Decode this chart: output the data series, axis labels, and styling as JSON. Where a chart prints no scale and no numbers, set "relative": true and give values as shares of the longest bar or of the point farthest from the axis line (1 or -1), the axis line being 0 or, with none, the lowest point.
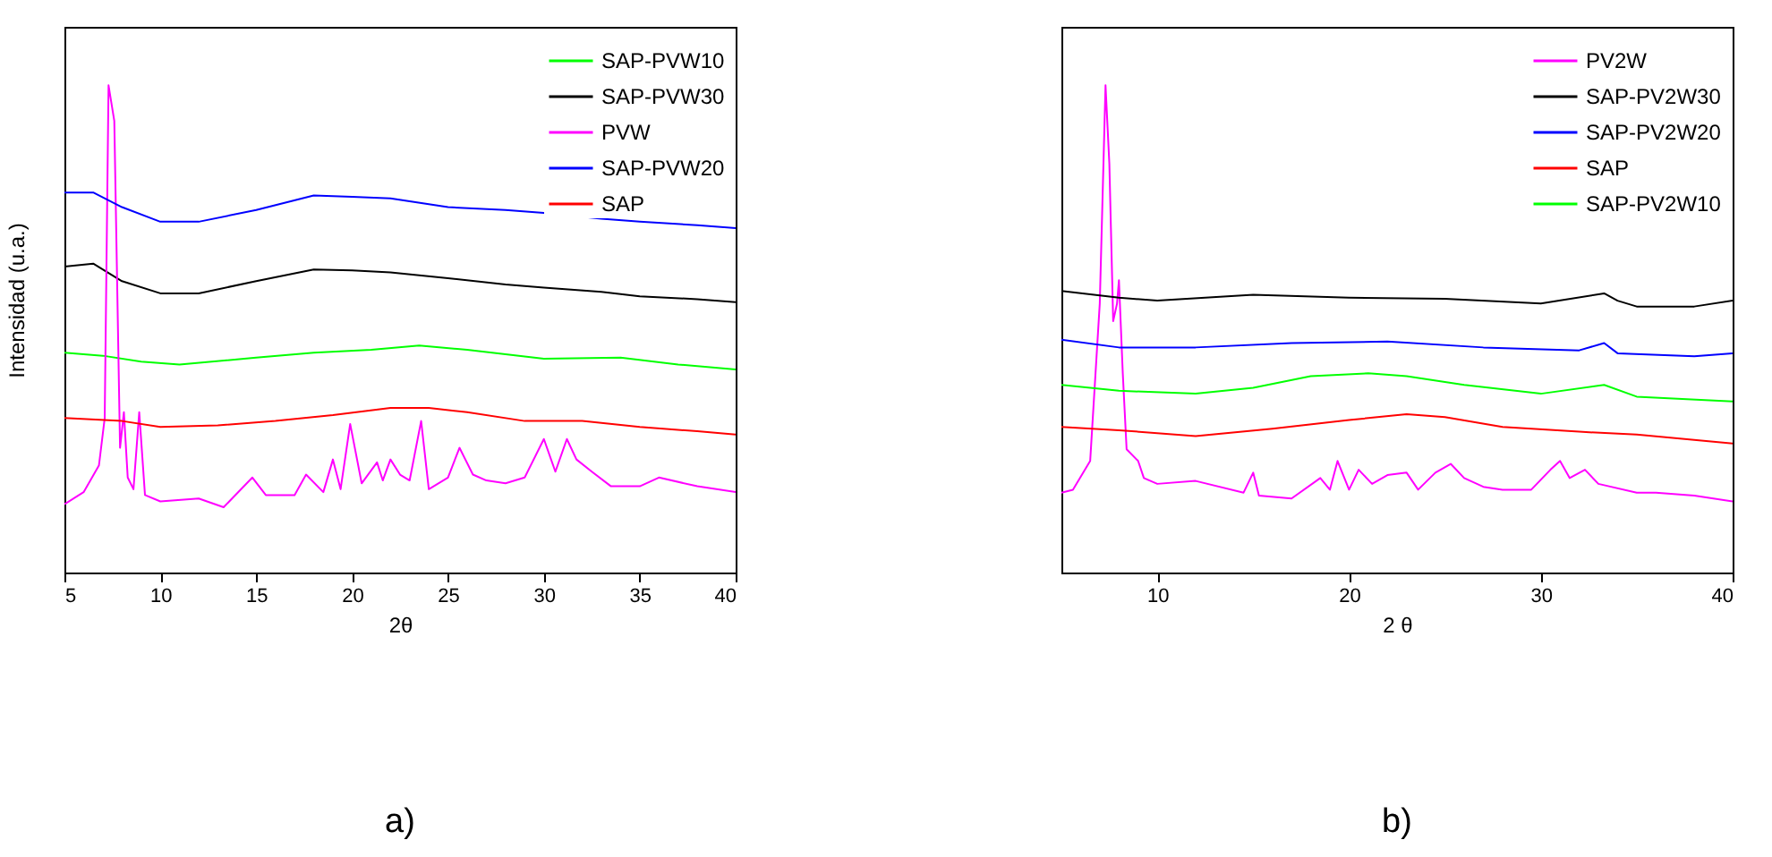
{
  "chart_data": [
    {
      "type": "line",
      "relative": true,
      "xlabel": "2θ",
      "ylabel": "Intensidad (u.a.)",
      "xlim": [
        5,
        40
      ],
      "xticks": [
        5,
        10,
        15,
        20,
        25,
        30,
        35,
        40
      ],
      "legend": "top right",
      "annotations": [
        "a)"
      ],
      "series": [
        {
          "name": "SAP-PVW10",
          "color": "#00ff00",
          "x": [
            5,
            7,
            9,
            11,
            15,
            18,
            21,
            23.5,
            26,
            30,
            34,
            37,
            40
          ],
          "values": [
            0.451,
            0.445,
            0.433,
            0.427,
            0.441,
            0.451,
            0.457,
            0.466,
            0.457,
            0.439,
            0.441,
            0.427,
            0.417
          ]
        },
        {
          "name": "SAP-PVW30",
          "color": "#000000",
          "x": [
            5,
            6.5,
            8,
            10,
            12,
            15,
            18,
            20,
            22,
            25,
            28,
            30,
            33,
            35,
            38,
            40
          ],
          "values": [
            0.628,
            0.634,
            0.598,
            0.573,
            0.573,
            0.598,
            0.622,
            0.62,
            0.616,
            0.604,
            0.591,
            0.585,
            0.576,
            0.567,
            0.561,
            0.555
          ]
        },
        {
          "name": "PVW",
          "color": "#ff00ff",
          "x": [
            5,
            6,
            6.8,
            7.1,
            7.3,
            7.6,
            7.9,
            8.1,
            8.3,
            8.6,
            8.9,
            9.2,
            10,
            12,
            13.3,
            14.8,
            15.5,
            17,
            17.6,
            18.5,
            19,
            19.4,
            19.9,
            20.5,
            21.3,
            21.6,
            22,
            22.5,
            23,
            23.6,
            24,
            25,
            25.6,
            26.3,
            27,
            28,
            29,
            30,
            30.6,
            31.2,
            31.7,
            32.5,
            33.5,
            35,
            36,
            38,
            40
          ],
          "values": [
            0.14,
            0.165,
            0.22,
            0.317,
            1,
            0.927,
            0.256,
            0.329,
            0.195,
            0.171,
            0.329,
            0.159,
            0.146,
            0.152,
            0.134,
            0.195,
            0.159,
            0.159,
            0.201,
            0.165,
            0.232,
            0.171,
            0.305,
            0.183,
            0.226,
            0.189,
            0.232,
            0.201,
            0.189,
            0.311,
            0.171,
            0.195,
            0.256,
            0.201,
            0.189,
            0.183,
            0.195,
            0.274,
            0.207,
            0.274,
            0.232,
            0.207,
            0.177,
            0.177,
            0.195,
            0.177,
            0.165
          ]
        },
        {
          "name": "SAP-PVW20",
          "color": "#0000ff",
          "x": [
            5,
            6.5,
            8,
            10,
            12,
            15,
            18,
            20,
            22,
            25,
            28,
            30,
            33,
            35,
            38,
            40
          ],
          "values": [
            0.78,
            0.78,
            0.75,
            0.72,
            0.72,
            0.744,
            0.774,
            0.771,
            0.768,
            0.75,
            0.744,
            0.738,
            0.726,
            0.72,
            0.713,
            0.707
          ]
        },
        {
          "name": "SAP",
          "color": "#ff0000",
          "x": [
            5,
            8,
            10,
            13,
            16,
            19,
            22,
            24,
            26,
            29,
            32,
            35,
            38,
            40
          ],
          "values": [
            0.317,
            0.311,
            0.299,
            0.302,
            0.311,
            0.323,
            0.338,
            0.338,
            0.329,
            0.311,
            0.311,
            0.299,
            0.29,
            0.283
          ]
        }
      ]
    },
    {
      "type": "line",
      "relative": true,
      "xlabel": "2 θ",
      "xlim": [
        5,
        40
      ],
      "xticks": [
        10,
        20,
        30,
        40
      ],
      "legend": "top right",
      "annotations": [
        "b)"
      ],
      "series": [
        {
          "name": "PV2W",
          "color": "#ff00ff",
          "x": [
            5,
            5.6,
            6.5,
            7,
            7.3,
            7.5,
            7.7,
            7.9,
            8,
            8.2,
            8.4,
            9,
            9.3,
            10,
            12,
            14.5,
            15,
            15.3,
            17,
            18.5,
            19,
            19.4,
            20,
            20.5,
            21.2,
            22,
            23,
            23.6,
            24.5,
            25.3,
            26,
            27,
            28,
            29.5,
            30.5,
            31,
            31.5,
            32.3,
            33,
            35,
            36,
            38,
            40
          ],
          "values": [
            0.164,
            0.17,
            0.229,
            0.552,
            1,
            0.839,
            0.516,
            0.552,
            0.6,
            0.409,
            0.253,
            0.229,
            0.194,
            0.182,
            0.188,
            0.164,
            0.205,
            0.158,
            0.152,
            0.194,
            0.17,
            0.229,
            0.17,
            0.211,
            0.182,
            0.2,
            0.205,
            0.17,
            0.205,
            0.223,
            0.194,
            0.176,
            0.17,
            0.17,
            0.211,
            0.229,
            0.194,
            0.211,
            0.182,
            0.164,
            0.164,
            0.158,
            0.146
          ]
        },
        {
          "name": "SAP-PV2W30",
          "color": "#000000",
          "x": [
            5,
            8,
            10,
            15,
            20,
            25,
            30,
            33.3,
            34,
            35,
            38,
            40
          ],
          "values": [
            0.578,
            0.564,
            0.558,
            0.57,
            0.564,
            0.562,
            0.552,
            0.573,
            0.558,
            0.546,
            0.546,
            0.558
          ]
        },
        {
          "name": "SAP-PV2W20",
          "color": "#0000ff",
          "x": [
            5,
            8,
            12,
            17,
            22,
            27,
            32,
            33.3,
            34,
            38,
            40
          ],
          "values": [
            0.478,
            0.462,
            0.462,
            0.471,
            0.474,
            0.462,
            0.456,
            0.471,
            0.45,
            0.444,
            0.45
          ]
        },
        {
          "name": "SAP",
          "color": "#ff0000",
          "x": [
            5,
            8,
            12,
            16,
            20,
            23,
            25,
            28,
            32,
            35,
            40
          ],
          "values": [
            0.299,
            0.292,
            0.28,
            0.295,
            0.313,
            0.325,
            0.319,
            0.299,
            0.289,
            0.283,
            0.265
          ]
        },
        {
          "name": "SAP-PV2W10",
          "color": "#00ff00",
          "x": [
            5,
            8,
            12,
            15,
            18,
            21,
            23,
            26,
            30,
            33.3,
            35,
            40
          ],
          "values": [
            0.385,
            0.373,
            0.367,
            0.379,
            0.403,
            0.409,
            0.403,
            0.385,
            0.367,
            0.385,
            0.361,
            0.351
          ]
        }
      ]
    }
  ]
}
